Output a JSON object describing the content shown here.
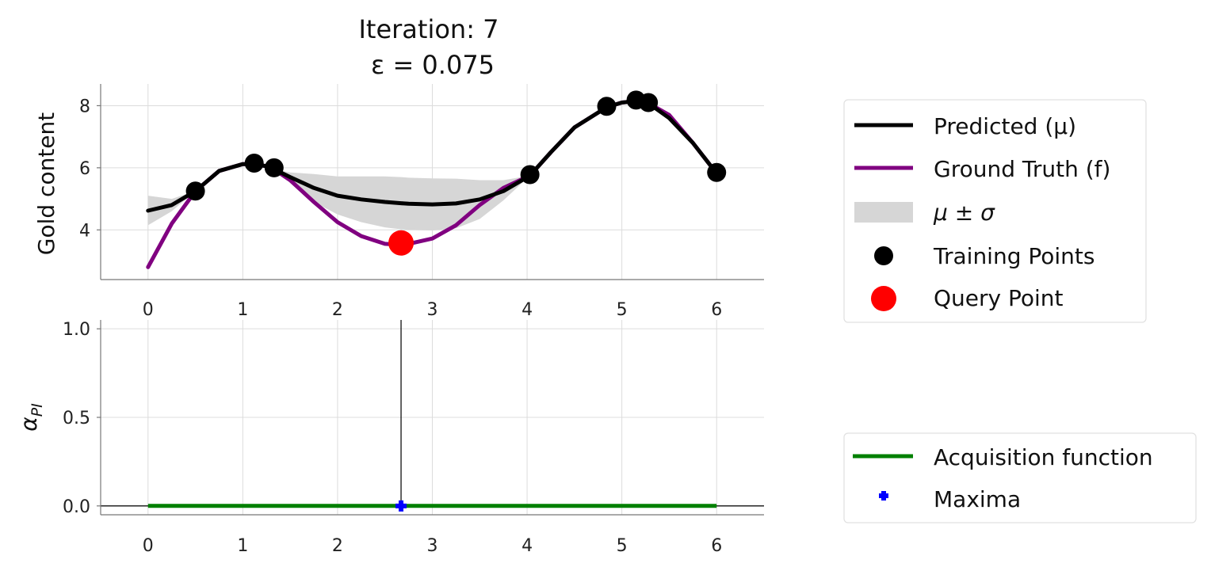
{
  "chart_data": [
    {
      "type": "line",
      "title": "Iteration: 7",
      "subtitle": "ε = 0.075",
      "xlabel": "",
      "ylabel": "Gold content",
      "xlim": [
        -0.5,
        6.5
      ],
      "ylim": [
        2.4,
        8.7
      ],
      "xticks": [
        "0",
        "1",
        "2",
        "3",
        "4",
        "5",
        "6"
      ],
      "yticks": [
        "4",
        "6",
        "8"
      ],
      "grid": true,
      "legend_position": "right",
      "x": [
        0,
        0.25,
        0.5,
        0.75,
        1.0,
        1.12,
        1.25,
        1.33,
        1.5,
        1.75,
        2.0,
        2.25,
        2.5,
        2.67,
        2.75,
        3.0,
        3.25,
        3.5,
        3.75,
        4.03,
        4.25,
        4.5,
        4.84,
        5.0,
        5.15,
        5.28,
        5.5,
        5.75,
        6.0
      ],
      "series": [
        {
          "name": "Predicted (μ)",
          "color": "#000000",
          "values": [
            4.62,
            4.8,
            5.25,
            5.9,
            6.12,
            6.12,
            6.05,
            5.95,
            5.7,
            5.35,
            5.1,
            4.98,
            4.9,
            4.86,
            4.84,
            4.82,
            4.85,
            4.98,
            5.25,
            5.75,
            6.5,
            7.3,
            7.95,
            8.1,
            8.15,
            8.08,
            7.6,
            6.8,
            5.82
          ]
        },
        {
          "name": "Ground Truth (f)",
          "color": "#800080",
          "values": [
            2.8,
            4.2,
            5.25,
            5.9,
            6.12,
            6.12,
            6.05,
            5.95,
            5.6,
            4.9,
            4.25,
            3.8,
            3.55,
            3.52,
            3.55,
            3.72,
            4.15,
            4.8,
            5.35,
            5.75,
            6.5,
            7.3,
            7.95,
            8.1,
            8.15,
            8.08,
            7.7,
            6.8,
            5.82
          ]
        }
      ],
      "band": {
        "name": "μ ± σ",
        "color": "#d6d6d6",
        "lower": [
          4.15,
          4.6,
          5.25,
          5.9,
          6.12,
          6.12,
          6.05,
          5.95,
          5.55,
          4.9,
          4.5,
          4.25,
          4.08,
          4.02,
          4.0,
          3.98,
          4.05,
          4.35,
          4.95,
          5.75,
          6.5,
          7.3,
          7.95,
          8.1,
          8.15,
          8.08,
          7.6,
          6.8,
          5.82
        ],
        "upper": [
          5.1,
          5.0,
          5.25,
          5.9,
          6.12,
          6.12,
          6.05,
          5.95,
          5.85,
          5.8,
          5.72,
          5.72,
          5.72,
          5.7,
          5.68,
          5.66,
          5.65,
          5.6,
          5.6,
          5.75,
          6.5,
          7.3,
          7.95,
          8.1,
          8.15,
          8.08,
          7.6,
          6.8,
          5.82
        ]
      },
      "training_points": {
        "name": "Training Points",
        "color": "#000000",
        "x": [
          0.5,
          1.12,
          1.33,
          4.03,
          4.84,
          5.15,
          5.28,
          6.0
        ],
        "y": [
          5.25,
          6.15,
          6.0,
          5.78,
          7.98,
          8.18,
          8.1,
          5.85
        ]
      },
      "query_point": {
        "name": "Query Point",
        "color": "#ff0000",
        "x": [
          2.67
        ],
        "y": [
          3.58
        ]
      }
    },
    {
      "type": "line",
      "title": "",
      "xlabel": "",
      "ylabel": "α",
      "ylabel_sub": "PI",
      "xlim": [
        -0.5,
        6.5
      ],
      "ylim": [
        -0.05,
        1.05
      ],
      "xticks": [
        "0",
        "1",
        "2",
        "3",
        "4",
        "5",
        "6"
      ],
      "yticks": [
        "0.0",
        "0.5",
        "1.0"
      ],
      "grid": true,
      "legend_position": "right",
      "series": [
        {
          "name": "Acquisition function",
          "color": "#008000",
          "x": [
            0,
            6
          ],
          "values": [
            0.0,
            0.0
          ]
        }
      ],
      "maxima": {
        "name": "Maxima",
        "color": "#0000ff",
        "x": [
          2.67
        ],
        "y": [
          0.0
        ]
      },
      "vline_x": 2.67,
      "hline_y": 0.0
    }
  ]
}
